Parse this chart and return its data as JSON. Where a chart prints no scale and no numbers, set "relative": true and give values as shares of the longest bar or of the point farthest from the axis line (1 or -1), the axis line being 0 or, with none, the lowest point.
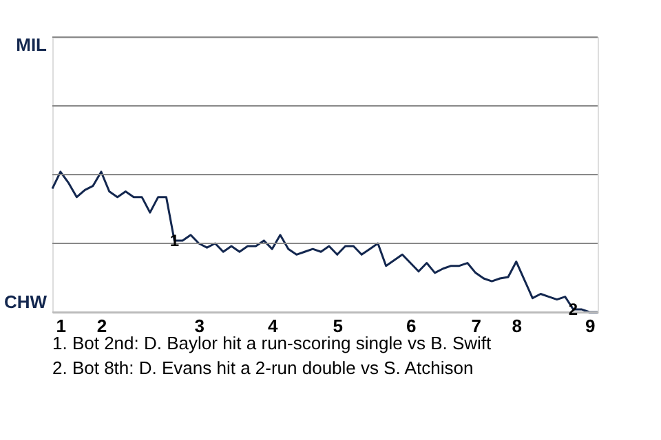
{
  "chart_data": {
    "type": "line",
    "relative": true,
    "categories": [
      null,
      "1",
      null,
      null,
      null,
      null,
      "2",
      null,
      null,
      null,
      null,
      null,
      null,
      null,
      null,
      null,
      null,
      null,
      "3",
      null,
      null,
      null,
      null,
      null,
      null,
      null,
      null,
      "4",
      null,
      null,
      null,
      null,
      null,
      null,
      null,
      "5",
      null,
      null,
      null,
      null,
      null,
      null,
      null,
      null,
      "6",
      null,
      null,
      null,
      null,
      null,
      null,
      null,
      "7",
      null,
      null,
      null,
      null,
      "8",
      null,
      null,
      null,
      null,
      null,
      null,
      null,
      null,
      "9",
      null
    ],
    "series": [
      {
        "color": "#13274f",
        "values": [
          0.88,
          1,
          0.92,
          0.82,
          0.87,
          0.9,
          1,
          0.86,
          0.82,
          0.86,
          0.82,
          0.82,
          0.71,
          0.82,
          0.82,
          0.51,
          0.51,
          0.55,
          0.49,
          0.46,
          0.49,
          0.43,
          0.47,
          0.43,
          0.47,
          0.47,
          0.51,
          0.45,
          0.55,
          0.45,
          0.41,
          0.43,
          0.45,
          0.43,
          0.47,
          0.41,
          0.47,
          0.47,
          0.41,
          0.45,
          0.49,
          0.33,
          0.37,
          0.41,
          0.35,
          0.29,
          0.35,
          0.28,
          0.31,
          0.33,
          0.33,
          0.35,
          0.28,
          0.24,
          0.22,
          0.24,
          0.25,
          0.36,
          0.23,
          0.1,
          0.13,
          0.11,
          0.09,
          0.11,
          0.02,
          0.02,
          0,
          0
        ]
      }
    ],
    "marker": "none",
    "ref_lines": [
      {
        "axis": "y",
        "value": 0.49,
        "color": "#888888"
      },
      {
        "axis": "y",
        "value": 0.98,
        "color": "#888888"
      },
      {
        "axis": "y",
        "value": 1.47,
        "color": "#888888"
      },
      {
        "axis": "y",
        "value": 1.96,
        "label": "MIL",
        "color": "#888888"
      },
      {
        "axis": "y",
        "value": 0,
        "label": "CHW",
        "color": "#bbbbbb"
      }
    ],
    "annotations": [
      {
        "text": "1",
        "y": 0.51
      },
      {
        "text": "2",
        "y": 0.02
      },
      "1. Bot 2nd: D. Baylor hit a run-scoring single vs B. Swift",
      "2. Bot 8th: D. Evans hit a 2-run double vs S. Atchison"
    ]
  }
}
